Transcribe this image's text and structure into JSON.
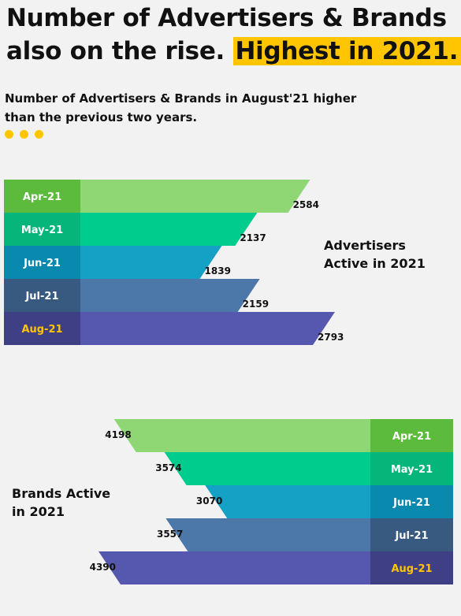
{
  "title": {
    "line1": "Number of Advertisers & Brands",
    "line2_plain": "also on the rise. ",
    "line2_highlight": "Highest in 2021."
  },
  "subtitle": {
    "line1": "Number of Advertisers & Brands in August'21 higher",
    "line2": "than the previous two years."
  },
  "colors": {
    "highlight": "#ffc600",
    "month_bars": [
      "#8fd674",
      "#00cc8e",
      "#15a0c6",
      "#4c77a9",
      "#5657ae"
    ],
    "month_tabs": [
      "#5cba3c",
      "#06b57a",
      "#0a89ae",
      "#395a80",
      "#3f3f86"
    ]
  },
  "chart_data": [
    {
      "type": "bar",
      "title": "Advertisers Active in 2021",
      "categories": [
        "Apr-21",
        "May-21",
        "Jun-21",
        "Jul-21",
        "Aug-21"
      ],
      "values": [
        2584,
        2137,
        1839,
        2159,
        2793
      ],
      "highlight_category": "Aug-21",
      "orientation": "horizontal"
    },
    {
      "type": "bar",
      "title": "Brands Active in 2021",
      "categories": [
        "Apr-21",
        "May-21",
        "Jun-21",
        "Jul-21",
        "Aug-21"
      ],
      "values": [
        4198,
        3574,
        3070,
        3557,
        4390
      ],
      "highlight_category": "Aug-21",
      "orientation": "horizontal"
    }
  ],
  "labels": {
    "advertisers_line1": "Advertisers",
    "advertisers_line2": "Active in 2021",
    "brands_line1": "Brands Active",
    "brands_line2": "in 2021"
  }
}
